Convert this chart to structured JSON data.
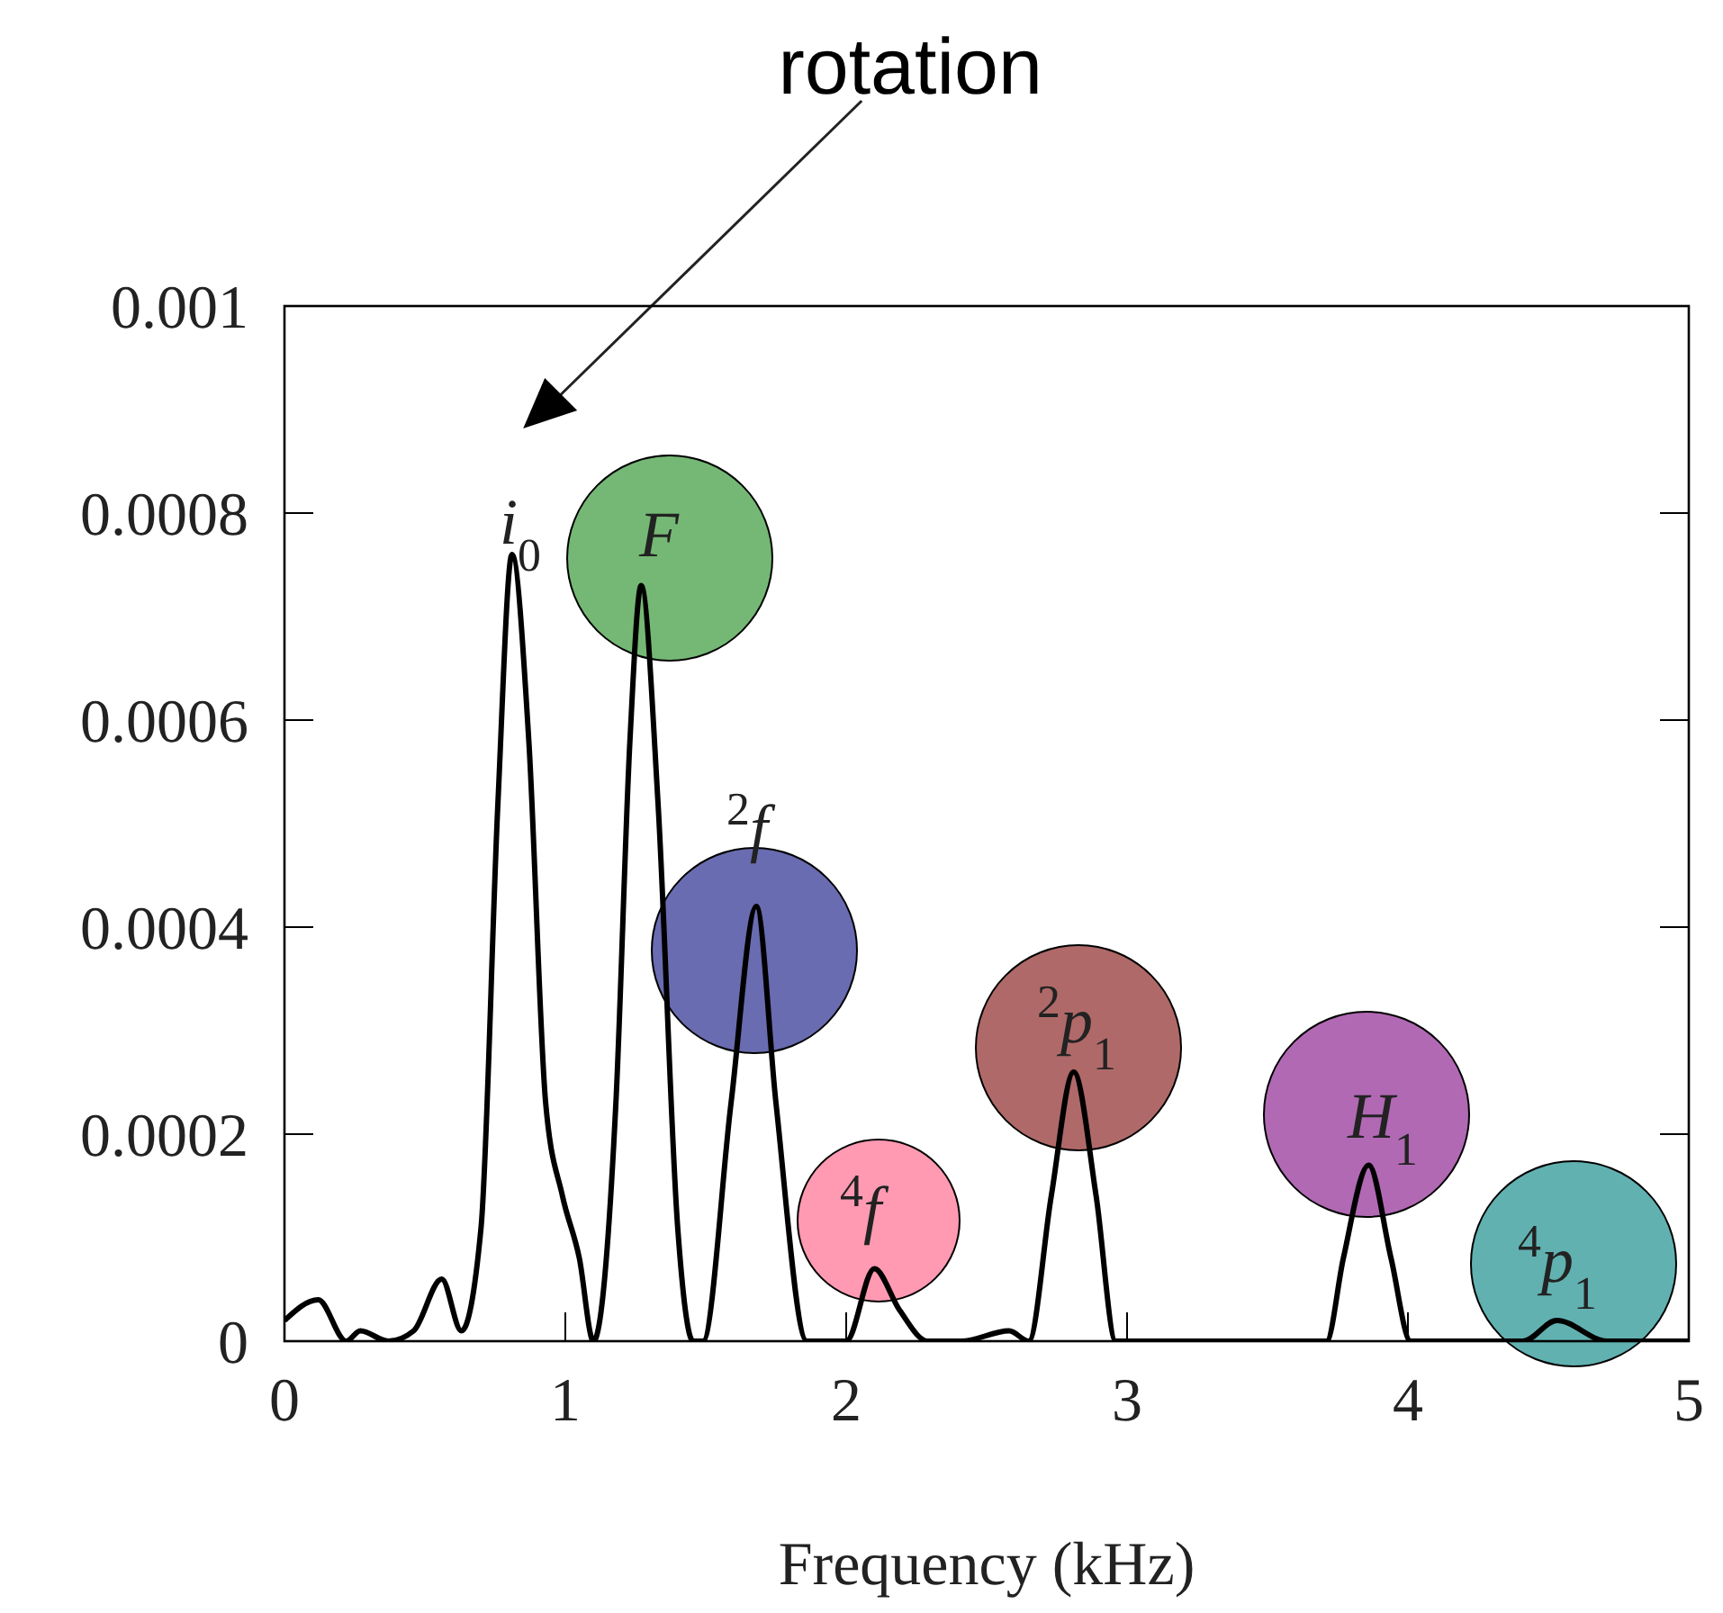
{
  "chart_data": {
    "type": "line",
    "xlabel": "Frequency (kHz)",
    "series": [
      {
        "color": "#000000",
        "x": [
          0,
          0.12,
          0.22,
          0.27,
          0.37,
          0.46,
          0.56,
          0.63,
          0.7,
          0.76,
          0.81,
          0.87,
          0.93,
          0.99,
          1.05,
          1.1,
          1.18,
          1.23,
          1.27,
          1.33,
          1.4,
          1.455,
          1.49,
          1.59,
          1.68,
          1.75,
          1.86,
          2.0,
          2.1,
          2.19,
          2.29,
          2.41,
          2.58,
          2.65,
          2.73,
          2.81,
          2.89,
          2.96,
          3.2,
          3.5,
          3.71,
          3.77,
          3.86,
          3.94,
          4.01,
          4.2,
          4.41,
          4.53,
          4.71,
          5
        ],
        "values": [
          2e-05,
          4e-05,
          0,
          1e-05,
          0,
          1e-05,
          6e-05,
          1e-05,
          0.00011,
          0.00052,
          0.00076,
          0.00058,
          0.00023,
          0.00014,
          8e-05,
          0,
          0.00023,
          0.00058,
          0.00073,
          0.00052,
          0.00011,
          0,
          0,
          0.00023,
          0.00042,
          0.00023,
          0,
          0,
          7e-05,
          3e-05,
          0,
          0,
          1e-05,
          0,
          0.00014,
          0.00026,
          0.00014,
          0,
          0,
          0,
          0,
          8e-05,
          0.00017,
          8e-05,
          0,
          0,
          0,
          2e-05,
          0,
          0
        ]
      }
    ],
    "xlim": [
      0,
      5
    ],
    "xticks": [
      0,
      1,
      2,
      3,
      4,
      5
    ],
    "ylim": [
      0,
      0.001
    ],
    "yticks": [
      0,
      0.0002,
      0.0004,
      0.0006,
      0.0008,
      0.001
    ],
    "grid": false,
    "legend": false,
    "marker": "none",
    "line_style": "solid",
    "annotations": [
      "rotation",
      "i$_{0}$",
      "F",
      "$^{2}$f",
      "$^{4}$f",
      "$^{2}$p$_{1}$",
      "H$_{1}$",
      "$^{4}$p$_{1}$"
    ]
  }
}
